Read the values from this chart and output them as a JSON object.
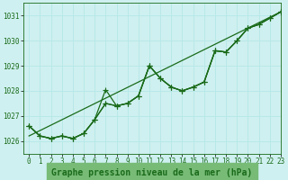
{
  "title": "Graphe pression niveau de la mer (hPa)",
  "bg_color": "#cff0f0",
  "grid_color": "#b8e8e8",
  "line_color": "#1a6b1a",
  "xlim": [
    -0.5,
    23
  ],
  "ylim": [
    1025.5,
    1031.5
  ],
  "yticks": [
    1026,
    1027,
    1028,
    1029,
    1030,
    1031
  ],
  "xticks": [
    0,
    1,
    2,
    3,
    4,
    5,
    6,
    7,
    8,
    9,
    10,
    11,
    12,
    13,
    14,
    15,
    16,
    17,
    18,
    19,
    20,
    21,
    22,
    23
  ],
  "straight_line": [
    1026.2,
    1031.15
  ],
  "series1": [
    1026.6,
    1026.2,
    1026.1,
    1026.2,
    1026.1,
    1026.3,
    1026.85,
    1027.5,
    1027.4,
    1027.5,
    1027.8,
    1029.0,
    1028.5,
    1028.15,
    1028.0,
    1028.15,
    1028.35,
    1029.6,
    1029.55,
    1030.0,
    1030.5,
    1030.65,
    1030.9,
    1031.15
  ],
  "series2": [
    1026.6,
    1026.2,
    1026.1,
    1026.2,
    1026.1,
    1026.3,
    1026.85,
    1028.05,
    1027.4,
    1027.5,
    1027.8,
    1029.0,
    1028.5,
    1028.15,
    1028.0,
    1028.15,
    1028.35,
    1029.6,
    1029.55,
    1030.0,
    1030.5,
    1030.65,
    1030.9,
    1031.15
  ],
  "series3": [
    1026.6,
    1026.2,
    1026.1,
    1026.2,
    1026.1,
    1026.3,
    1026.85,
    1027.5,
    1027.4,
    1027.5,
    1027.8,
    1029.0,
    1028.5,
    1028.15,
    1028.0,
    1028.15,
    1028.35,
    1029.6,
    1029.55,
    1030.0,
    1030.5,
    1030.65,
    1030.9,
    1031.15
  ],
  "marker": "+",
  "markersize": 4,
  "linewidth": 0.9,
  "tick_fontsize": 5.5,
  "title_fontsize": 7.0,
  "title_color": "#1a6b1a",
  "title_bg": "#77bb77"
}
